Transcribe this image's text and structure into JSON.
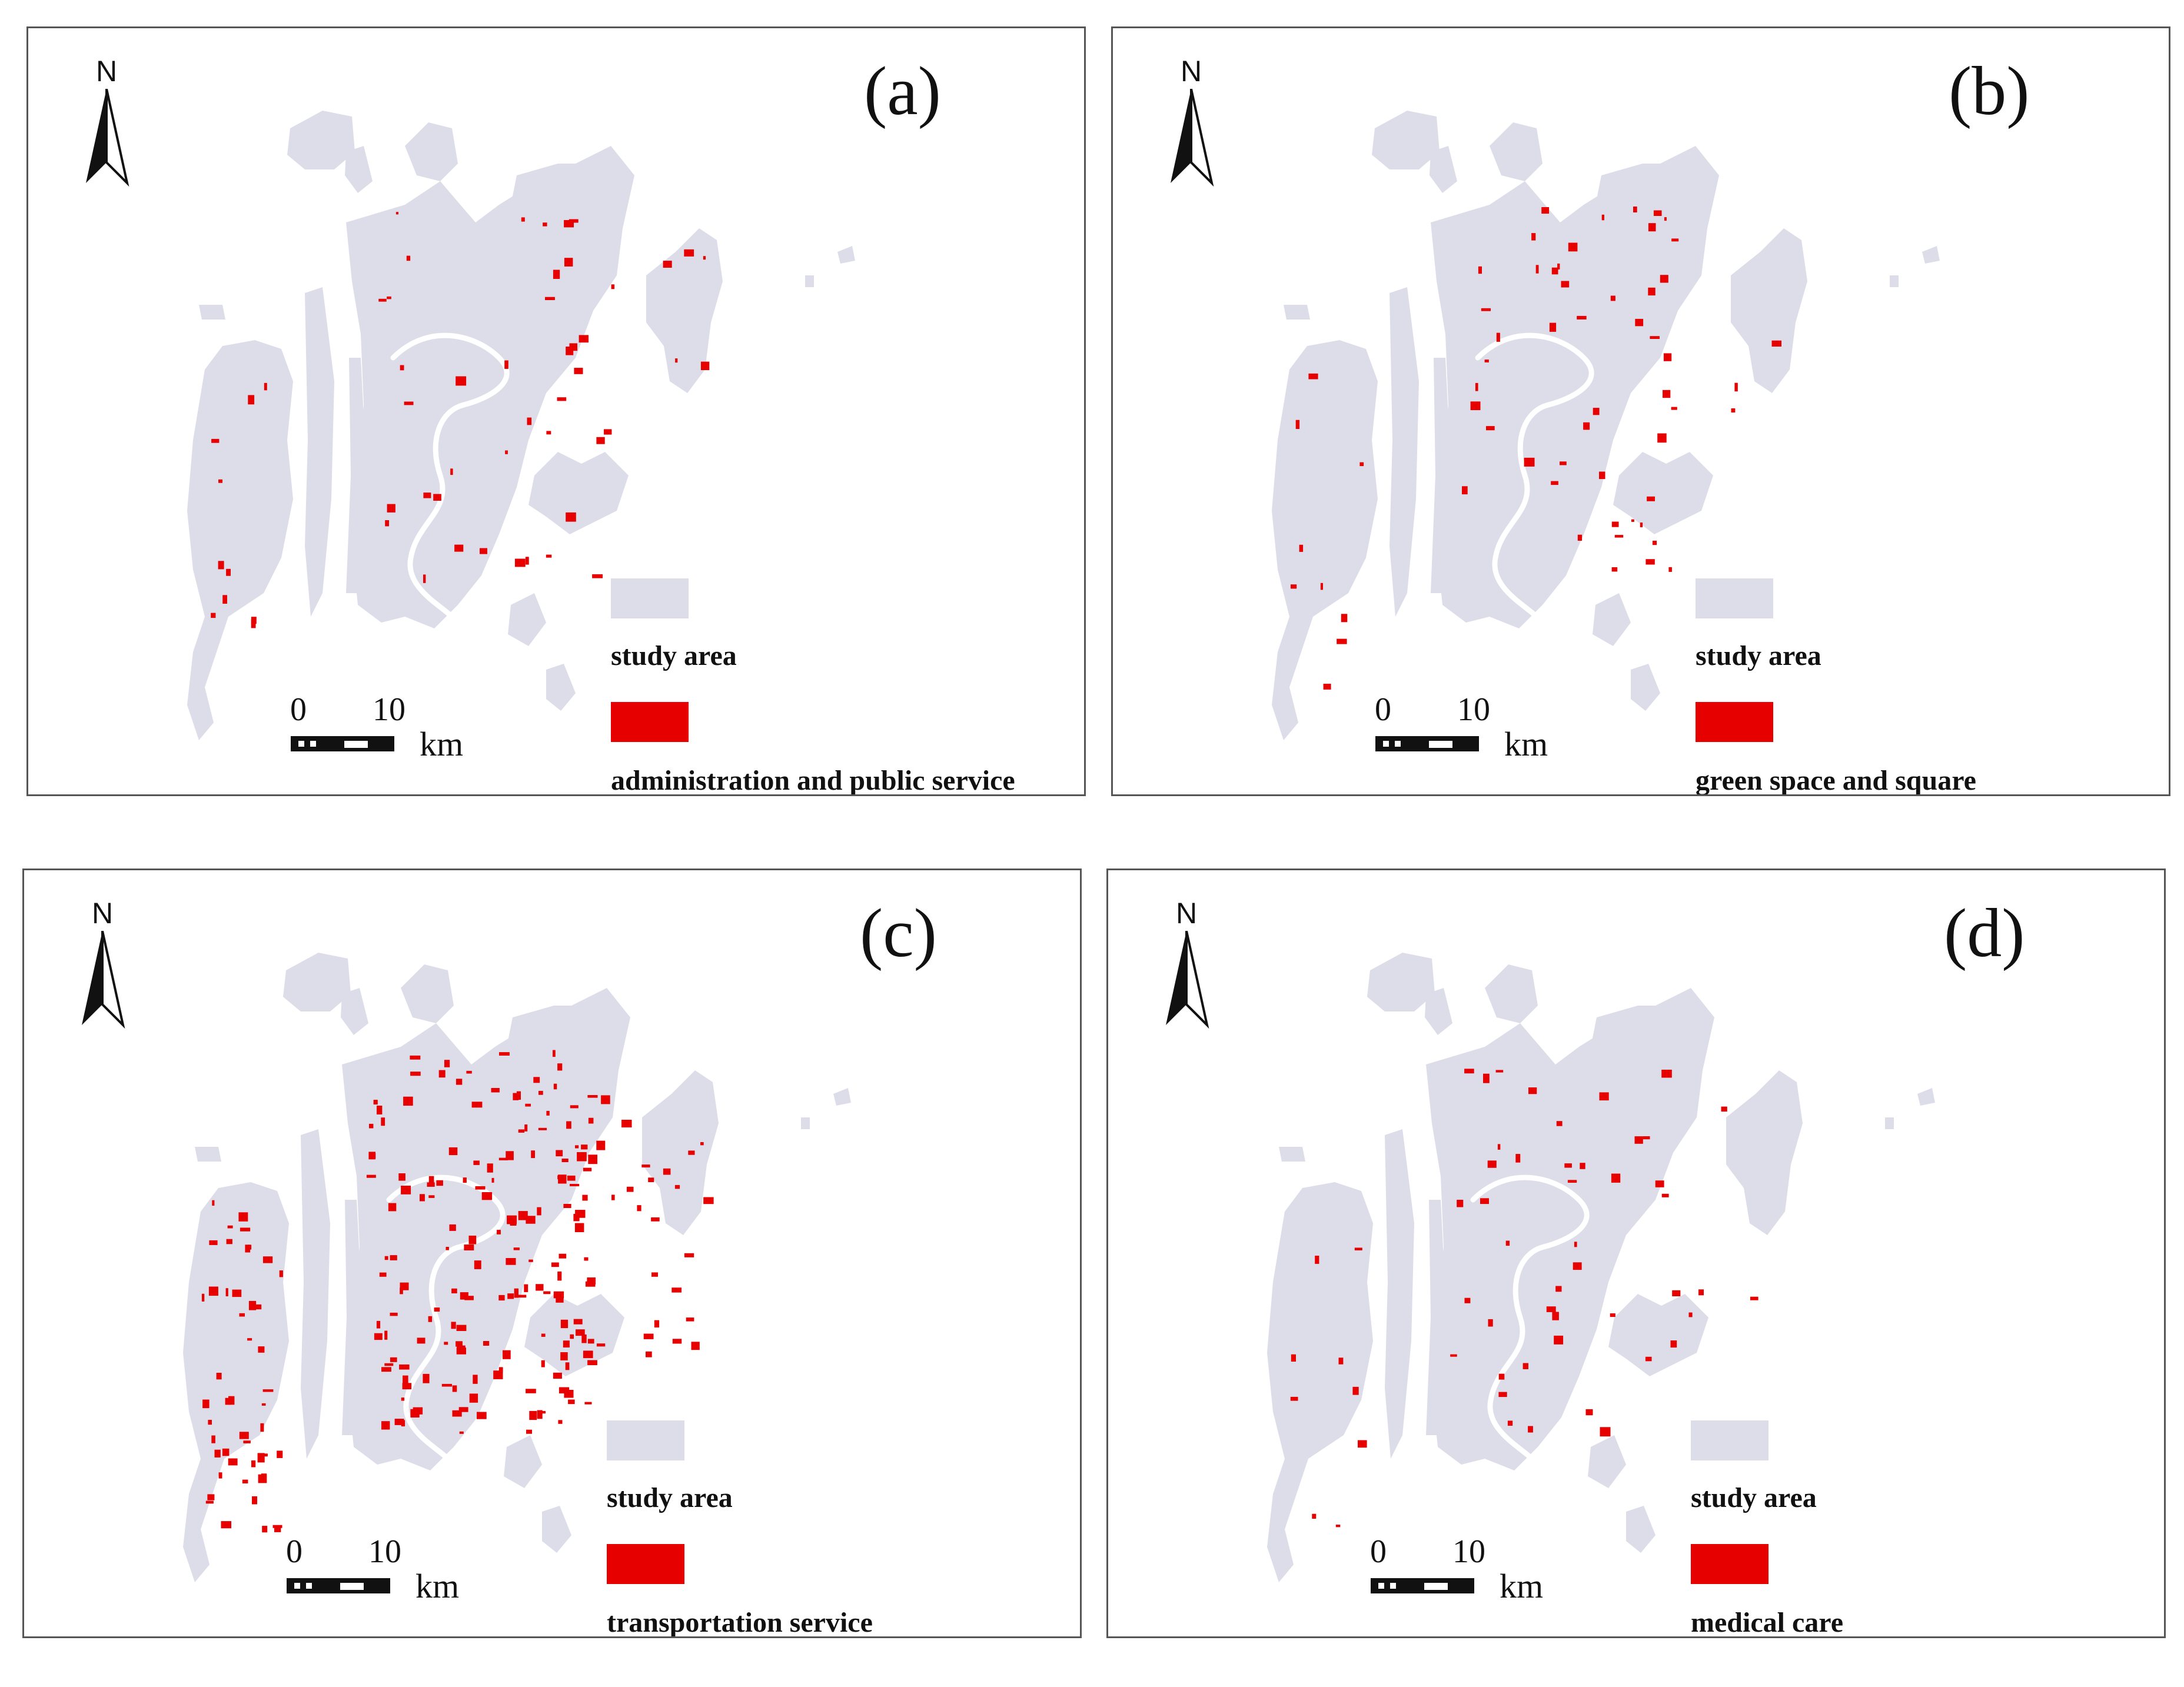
{
  "panels": [
    {
      "id": "a",
      "label": "(a)",
      "north_label": "N",
      "scale": {
        "ticks": [
          "0",
          "10"
        ],
        "unit": "km"
      },
      "legend": {
        "study_area_label": "study area",
        "class_label": "administration and public service"
      },
      "density": 0.9
    },
    {
      "id": "b",
      "label": "(b)",
      "north_label": "N",
      "scale": {
        "ticks": [
          "0",
          "10"
        ],
        "unit": "km"
      },
      "legend": {
        "study_area_label": "study area",
        "class_label": "green space and square"
      },
      "density": 1.0
    },
    {
      "id": "c",
      "label": "(c)",
      "north_label": "N",
      "scale": {
        "ticks": [
          "0",
          "10"
        ],
        "unit": "km"
      },
      "legend": {
        "study_area_label": "study area",
        "class_label": "transportation service"
      },
      "density": 4.0
    },
    {
      "id": "d",
      "label": "(d)",
      "north_label": "N",
      "scale": {
        "ticks": [
          "0",
          "10"
        ],
        "unit": "km"
      },
      "legend": {
        "study_area_label": "study area",
        "class_label": "medical care"
      },
      "density": 0.9
    }
  ],
  "colors": {
    "study_area": "#dcdde8",
    "feature_class": "#e60000",
    "river": "#ffffff",
    "frame": "#555555"
  }
}
